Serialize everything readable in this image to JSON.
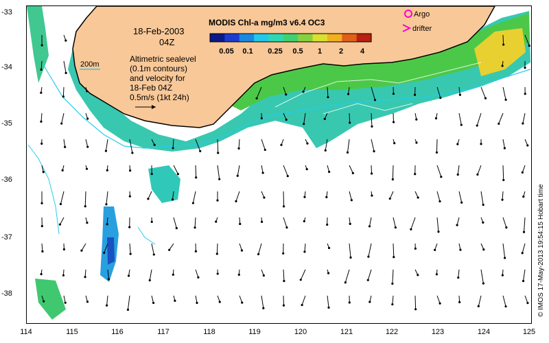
{
  "map": {
    "date": "18-Feb-2003",
    "time": "04Z",
    "colorbar_title": "MODIS Chl-a mg/m3 v6.4 OC3",
    "colorbar_ticks": [
      "0.05",
      "0.1",
      "0.25",
      "0.5",
      "1",
      "2",
      "4"
    ],
    "bathy_legend": "200m",
    "description_lines": [
      "Altimetric sealevel",
      "(0.1m contours)",
      "and velocity for",
      "18-Feb 04Z",
      "0.5m/s (1kt 24h)"
    ],
    "legend_argo": "Argo",
    "legend_drifter": "drifter",
    "credit": "© IMOS 17-May-2013 19:54:15 Hobart time",
    "lat_ticks": [
      "-33",
      "-34",
      "-35",
      "-36",
      "-37",
      "-38"
    ],
    "lon_ticks": [
      "114",
      "115",
      "116",
      "117",
      "118",
      "119",
      "120",
      "121",
      "122",
      "123",
      "124",
      "125"
    ],
    "colors": {
      "land": "#f8c898",
      "coast": "#000000",
      "contour_200m": "#22ccee",
      "argo": "#ff00cc",
      "drifter": "#ff00cc",
      "vector": "#000000",
      "sealevel_contour": "#ffffff"
    },
    "colorbar_colors": [
      "#0a1a88",
      "#1c3cd0",
      "#1a88e0",
      "#22c8e8",
      "#30d8b0",
      "#40d070",
      "#88d040",
      "#d8e030",
      "#f0b020",
      "#e06018",
      "#b82010"
    ]
  }
}
